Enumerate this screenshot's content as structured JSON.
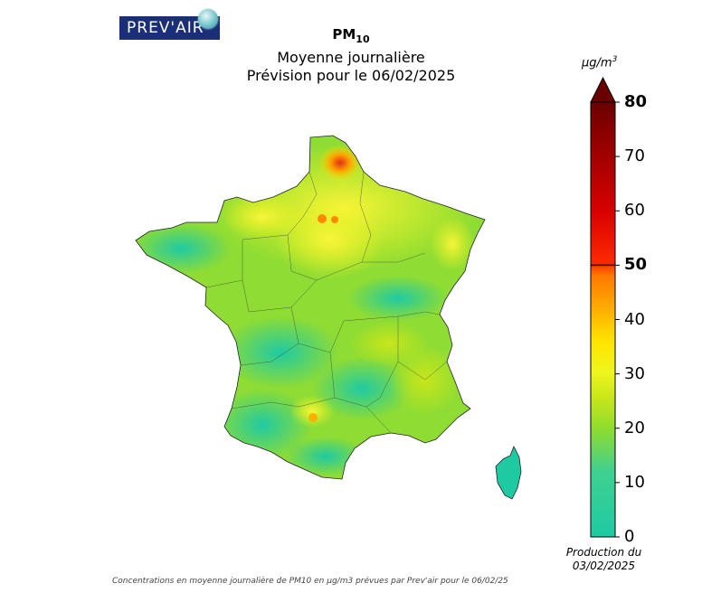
{
  "logo": {
    "text": "PREV'AIR"
  },
  "title": {
    "pollutant": "PM",
    "pollutant_sub": "10",
    "line2": "Moyenne journalière",
    "line3": "Prévision pour le 06/02/2025"
  },
  "colorbar": {
    "unit_main": "µg/m",
    "unit_exp": "3",
    "ticks": [
      {
        "value": 80,
        "label": "80",
        "bold": true
      },
      {
        "value": 70,
        "label": "70",
        "bold": false
      },
      {
        "value": 60,
        "label": "60",
        "bold": false
      },
      {
        "value": 50,
        "label": "50",
        "bold": true
      },
      {
        "value": 40,
        "label": "40",
        "bold": false
      },
      {
        "value": 30,
        "label": "30",
        "bold": false
      },
      {
        "value": 20,
        "label": "20",
        "bold": false
      },
      {
        "value": 10,
        "label": "10",
        "bold": false
      },
      {
        "value": 0,
        "label": "0",
        "bold": false
      }
    ],
    "min": 0,
    "max": 80,
    "threshold": 50,
    "colors": [
      "#1fcaa3",
      "#3fd090",
      "#8fdc2e",
      "#c8e61a",
      "#f0f51c",
      "#ffe400",
      "#ffb000",
      "#ff7a00",
      "#ff2a00",
      "#d80000",
      "#a00000",
      "#6b0000"
    ]
  },
  "production": {
    "line1": "Production du",
    "line2": "03/02/2025"
  },
  "caption": "Concentrations en moyenne journalière de PM10 en µg/m3 prévues par Prev'air pour le 06/02/25"
}
